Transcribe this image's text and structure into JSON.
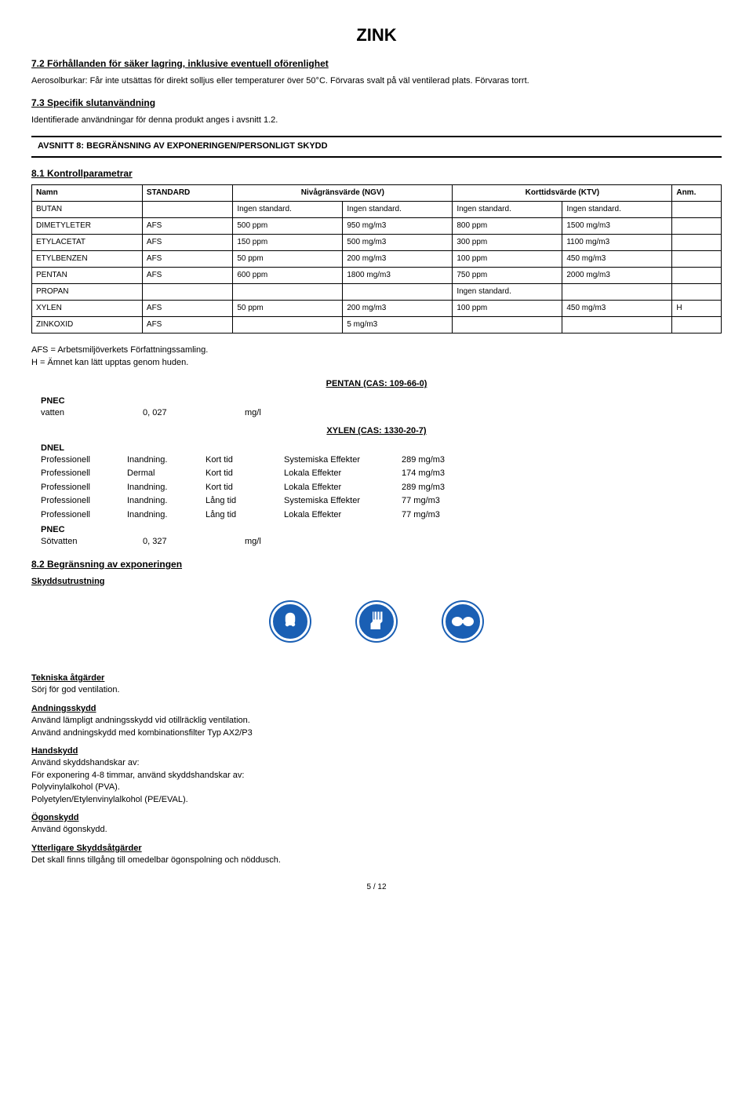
{
  "title": "ZINK",
  "sec72": {
    "heading": "7.2 Förhållanden för säker lagring, inklusive eventuell oförenlighet",
    "text": "Aerosolburkar: Får inte utsättas för direkt solljus eller temperaturer över 50°C.  Förvaras svalt på väl ventilerad plats.  Förvaras torrt."
  },
  "sec73": {
    "heading": "7.3 Specifik slutanvändning",
    "text": "Identifierade användningar för denna produkt anges i avsnitt 1.2."
  },
  "avsnitt8": "AVSNITT 8: BEGRÄNSNING AV EXPONERINGEN/PERSONLIGT SKYDD",
  "sec81": {
    "heading": "8.1 Kontrollparametrar"
  },
  "table": {
    "headers": [
      "Namn",
      "STANDARD",
      "Nivågränsvärde (NGV)",
      "",
      "Korttidsvärde (KTV)",
      "",
      "Anm."
    ],
    "rows": [
      [
        "BUTAN",
        "",
        "Ingen standard.",
        "Ingen standard.",
        "Ingen standard.",
        "Ingen standard.",
        ""
      ],
      [
        "DIMETYLETER",
        "AFS",
        "500  ppm",
        "950  mg/m3",
        "800  ppm",
        "1500  mg/m3",
        ""
      ],
      [
        "ETYLACETAT",
        "AFS",
        "150  ppm",
        "500  mg/m3",
        "300  ppm",
        "1100  mg/m3",
        ""
      ],
      [
        "ETYLBENZEN",
        "AFS",
        "50  ppm",
        "200  mg/m3",
        "100  ppm",
        "450  mg/m3",
        ""
      ],
      [
        "PENTAN",
        "AFS",
        "600  ppm",
        "1800  mg/m3",
        "750  ppm",
        "2000  mg/m3",
        ""
      ],
      [
        "PROPAN",
        "",
        "",
        "",
        "Ingen standard.",
        "",
        ""
      ],
      [
        "XYLEN",
        "AFS",
        "50  ppm",
        "200  mg/m3",
        "100  ppm",
        "450  mg/m3",
        "H"
      ],
      [
        "ZINKOXID",
        "AFS",
        "",
        "5  mg/m3",
        "",
        "",
        ""
      ]
    ]
  },
  "afs_note1": "AFS = Arbetsmiljöverkets Författningssamling.",
  "afs_note2": "H =  Ämnet kan lätt upptas genom huden.",
  "pentan_cas": "PENTAN (CAS: 109-66-0)",
  "xylen_cas": "XYLEN (CAS: 1330-20-7)",
  "pnec1": {
    "label": "PNEC",
    "row": {
      "k": "vatten",
      "v": "0, 027",
      "u": "mg/l"
    }
  },
  "dnel": {
    "label": "DNEL",
    "rows": [
      [
        "Professionell",
        "Inandning.",
        "Kort tid",
        "Systemiska Effekter",
        "289 mg/m3"
      ],
      [
        "Professionell",
        "Dermal",
        "Kort tid",
        "Lokala Effekter",
        "174 mg/m3"
      ],
      [
        "Professionell",
        "Inandning.",
        "Kort tid",
        "Lokala Effekter",
        "289 mg/m3"
      ],
      [
        "Professionell",
        "Inandning.",
        "Lång tid",
        "Systemiska Effekter",
        "77 mg/m3"
      ],
      [
        "Professionell",
        "Inandning.",
        "Lång tid",
        "Lokala Effekter",
        "77 mg/m3"
      ]
    ]
  },
  "pnec2": {
    "label": "PNEC",
    "row": {
      "k": "Sötvatten",
      "v": "0, 327",
      "u": "mg/l"
    }
  },
  "sec82": {
    "heading": "8.2 Begränsning av exponeringen",
    "skydds": "Skyddsutrustning"
  },
  "bottom": {
    "tekniska_h": "Tekniska åtgärder",
    "tekniska_t": "Sörj för god ventilation.",
    "andning_h": "Andningsskydd",
    "andning_t1": "Använd lämpligt andningsskydd vid otillräcklig ventilation.",
    "andning_t2": "Använd andningskydd med kombinationsfilter Typ AX2/P3",
    "hand_h": "Handskydd",
    "hand_t1": "Använd skyddshandskar av:",
    "hand_t2": "För exponering 4-8 timmar,  använd skyddshandskar av:",
    "hand_t3": "Polyvinylalkohol (PVA).",
    "hand_t4": "Polyetylen/Etylenvinylalkohol (PE/EVAL).",
    "ogon_h": "Ögonskydd",
    "ogon_t": "Använd ögonskydd.",
    "ytter_h": "Ytterligare Skyddsåtgärder",
    "ytter_t": "Det skall finns tillgång till omedelbar ögonspolning och nöddusch."
  },
  "footer": "5  /  12"
}
